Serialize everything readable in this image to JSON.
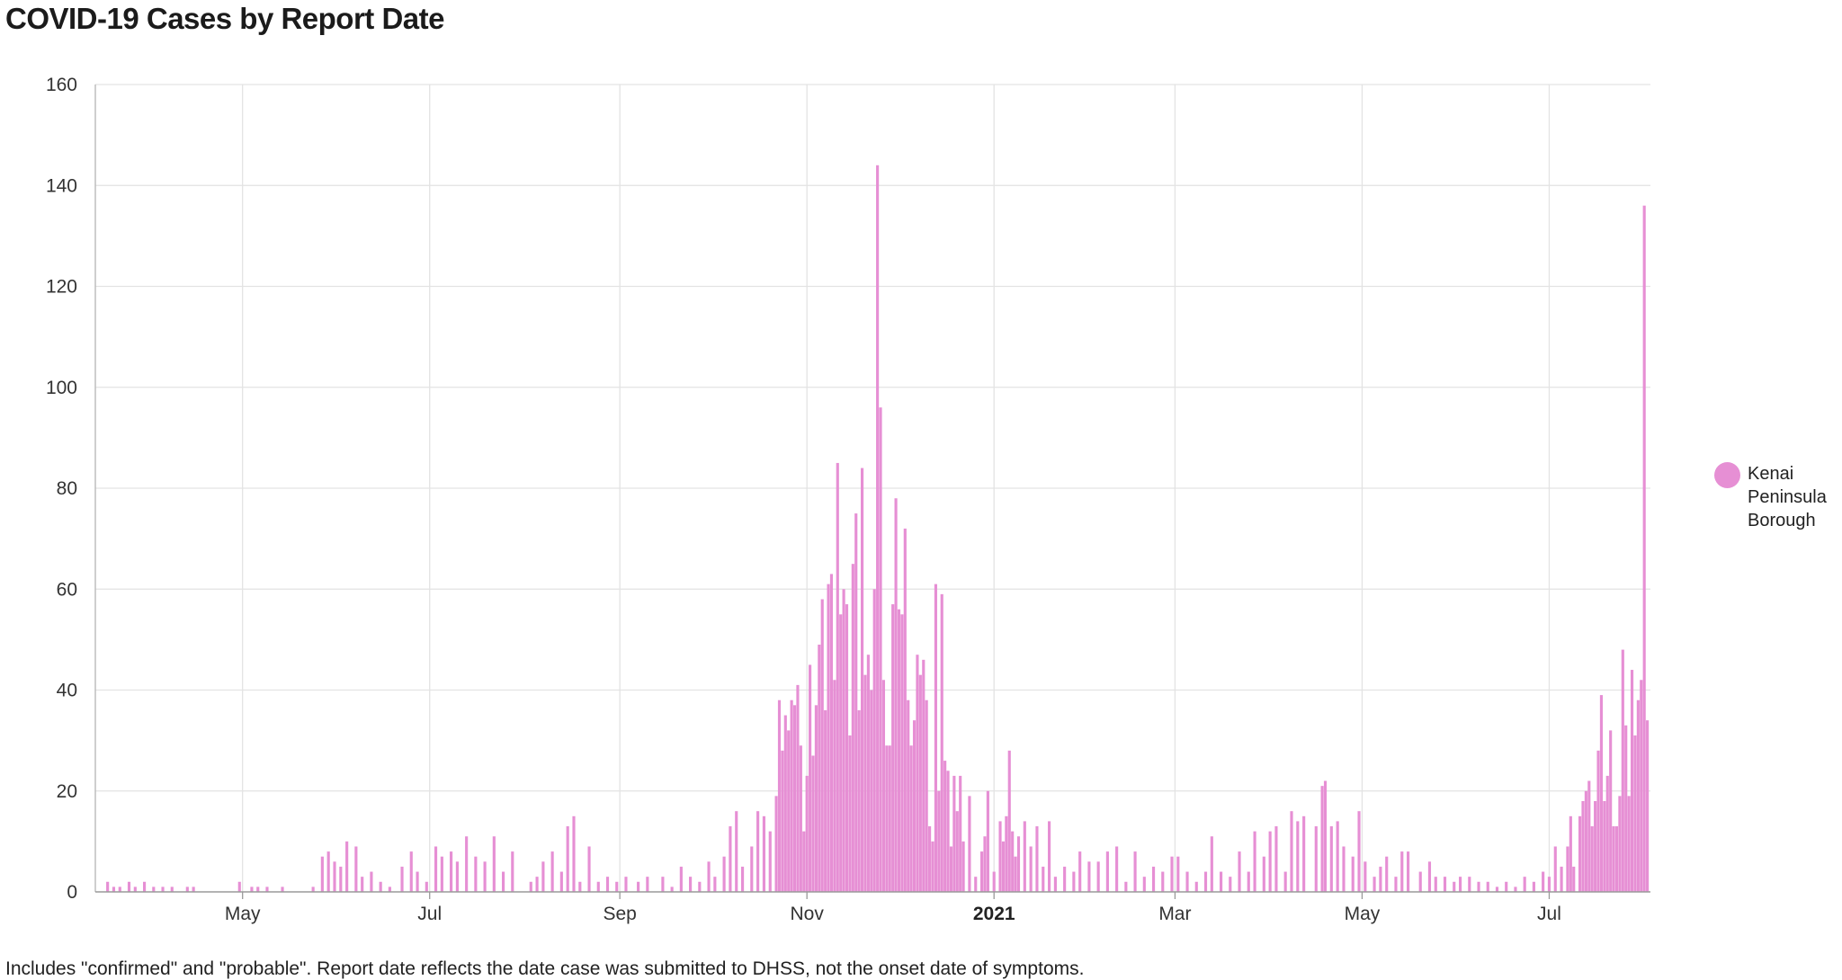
{
  "chart_data": {
    "type": "bar",
    "title": "COVID-19 Cases by Report Date",
    "footnote": "Includes \"confirmed\" and \"probable\". Report date reflects the date case was submitted to DHSS, not the onset date of symptoms.",
    "series": [
      {
        "name": "Kenai Peninsula Borough",
        "color": "#e68fd4",
        "points": [
          [
            "2020-03-18",
            2
          ],
          [
            "2020-03-20",
            1
          ],
          [
            "2020-03-22",
            1
          ],
          [
            "2020-03-25",
            2
          ],
          [
            "2020-03-27",
            1
          ],
          [
            "2020-03-30",
            2
          ],
          [
            "2020-04-02",
            1
          ],
          [
            "2020-04-05",
            1
          ],
          [
            "2020-04-08",
            1
          ],
          [
            "2020-04-13",
            1
          ],
          [
            "2020-04-15",
            1
          ],
          [
            "2020-04-30",
            2
          ],
          [
            "2020-05-04",
            1
          ],
          [
            "2020-05-06",
            1
          ],
          [
            "2020-05-09",
            1
          ],
          [
            "2020-05-14",
            1
          ],
          [
            "2020-05-24",
            1
          ],
          [
            "2020-05-27",
            7
          ],
          [
            "2020-05-29",
            8
          ],
          [
            "2020-05-31",
            6
          ],
          [
            "2020-06-02",
            5
          ],
          [
            "2020-06-04",
            10
          ],
          [
            "2020-06-07",
            9
          ],
          [
            "2020-06-09",
            3
          ],
          [
            "2020-06-12",
            4
          ],
          [
            "2020-06-15",
            2
          ],
          [
            "2020-06-18",
            1
          ],
          [
            "2020-06-22",
            5
          ],
          [
            "2020-06-25",
            8
          ],
          [
            "2020-06-27",
            4
          ],
          [
            "2020-06-30",
            2
          ],
          [
            "2020-07-03",
            9
          ],
          [
            "2020-07-05",
            7
          ],
          [
            "2020-07-08",
            8
          ],
          [
            "2020-07-10",
            6
          ],
          [
            "2020-07-13",
            11
          ],
          [
            "2020-07-16",
            7
          ],
          [
            "2020-07-19",
            6
          ],
          [
            "2020-07-22",
            11
          ],
          [
            "2020-07-25",
            4
          ],
          [
            "2020-07-28",
            8
          ],
          [
            "2020-08-03",
            2
          ],
          [
            "2020-08-05",
            3
          ],
          [
            "2020-08-07",
            6
          ],
          [
            "2020-08-10",
            8
          ],
          [
            "2020-08-13",
            4
          ],
          [
            "2020-08-15",
            13
          ],
          [
            "2020-08-17",
            15
          ],
          [
            "2020-08-19",
            2
          ],
          [
            "2020-08-22",
            9
          ],
          [
            "2020-08-25",
            2
          ],
          [
            "2020-08-28",
            3
          ],
          [
            "2020-08-31",
            2
          ],
          [
            "2020-09-03",
            3
          ],
          [
            "2020-09-07",
            2
          ],
          [
            "2020-09-10",
            3
          ],
          [
            "2020-09-15",
            3
          ],
          [
            "2020-09-18",
            1
          ],
          [
            "2020-09-21",
            5
          ],
          [
            "2020-09-24",
            3
          ],
          [
            "2020-09-27",
            2
          ],
          [
            "2020-09-30",
            6
          ],
          [
            "2020-10-02",
            3
          ],
          [
            "2020-10-05",
            7
          ],
          [
            "2020-10-07",
            13
          ],
          [
            "2020-10-09",
            16
          ],
          [
            "2020-10-11",
            5
          ],
          [
            "2020-10-14",
            9
          ],
          [
            "2020-10-16",
            16
          ],
          [
            "2020-10-18",
            15
          ],
          [
            "2020-10-20",
            12
          ],
          [
            "2020-10-22",
            19
          ],
          [
            "2020-10-23",
            38
          ],
          [
            "2020-10-24",
            28
          ],
          [
            "2020-10-25",
            35
          ],
          [
            "2020-10-26",
            32
          ],
          [
            "2020-10-27",
            38
          ],
          [
            "2020-10-28",
            37
          ],
          [
            "2020-10-29",
            41
          ],
          [
            "2020-10-30",
            29
          ],
          [
            "2020-10-31",
            12
          ],
          [
            "2020-11-01",
            23
          ],
          [
            "2020-11-02",
            45
          ],
          [
            "2020-11-03",
            27
          ],
          [
            "2020-11-04",
            37
          ],
          [
            "2020-11-05",
            49
          ],
          [
            "2020-11-06",
            58
          ],
          [
            "2020-11-07",
            36
          ],
          [
            "2020-11-08",
            61
          ],
          [
            "2020-11-09",
            63
          ],
          [
            "2020-11-10",
            42
          ],
          [
            "2020-11-11",
            85
          ],
          [
            "2020-11-12",
            55
          ],
          [
            "2020-11-13",
            60
          ],
          [
            "2020-11-14",
            57
          ],
          [
            "2020-11-15",
            31
          ],
          [
            "2020-11-16",
            65
          ],
          [
            "2020-11-17",
            75
          ],
          [
            "2020-11-18",
            36
          ],
          [
            "2020-11-19",
            84
          ],
          [
            "2020-11-20",
            43
          ],
          [
            "2020-11-21",
            47
          ],
          [
            "2020-11-22",
            40
          ],
          [
            "2020-11-23",
            60
          ],
          [
            "2020-11-24",
            144
          ],
          [
            "2020-11-25",
            96
          ],
          [
            "2020-11-26",
            42
          ],
          [
            "2020-11-27",
            29
          ],
          [
            "2020-11-28",
            29
          ],
          [
            "2020-11-29",
            57
          ],
          [
            "2020-11-30",
            78
          ],
          [
            "2020-12-01",
            56
          ],
          [
            "2020-12-02",
            55
          ],
          [
            "2020-12-03",
            72
          ],
          [
            "2020-12-04",
            38
          ],
          [
            "2020-12-05",
            29
          ],
          [
            "2020-12-06",
            34
          ],
          [
            "2020-12-07",
            47
          ],
          [
            "2020-12-08",
            43
          ],
          [
            "2020-12-09",
            46
          ],
          [
            "2020-12-10",
            38
          ],
          [
            "2020-12-11",
            13
          ],
          [
            "2020-12-12",
            10
          ],
          [
            "2020-12-13",
            61
          ],
          [
            "2020-12-14",
            20
          ],
          [
            "2020-12-15",
            59
          ],
          [
            "2020-12-16",
            26
          ],
          [
            "2020-12-17",
            24
          ],
          [
            "2020-12-18",
            9
          ],
          [
            "2020-12-19",
            23
          ],
          [
            "2020-12-20",
            16
          ],
          [
            "2020-12-21",
            23
          ],
          [
            "2020-12-22",
            10
          ],
          [
            "2020-12-24",
            19
          ],
          [
            "2020-12-26",
            3
          ],
          [
            "2020-12-28",
            8
          ],
          [
            "2020-12-29",
            11
          ],
          [
            "2020-12-30",
            20
          ],
          [
            "2021-01-01",
            4
          ],
          [
            "2021-01-03",
            14
          ],
          [
            "2021-01-04",
            10
          ],
          [
            "2021-01-05",
            15
          ],
          [
            "2021-01-06",
            28
          ],
          [
            "2021-01-07",
            12
          ],
          [
            "2021-01-08",
            7
          ],
          [
            "2021-01-09",
            11
          ],
          [
            "2021-01-11",
            14
          ],
          [
            "2021-01-13",
            9
          ],
          [
            "2021-01-15",
            13
          ],
          [
            "2021-01-17",
            5
          ],
          [
            "2021-01-19",
            14
          ],
          [
            "2021-01-21",
            3
          ],
          [
            "2021-01-24",
            5
          ],
          [
            "2021-01-27",
            4
          ],
          [
            "2021-01-29",
            8
          ],
          [
            "2021-02-01",
            6
          ],
          [
            "2021-02-04",
            6
          ],
          [
            "2021-02-07",
            8
          ],
          [
            "2021-02-10",
            9
          ],
          [
            "2021-02-13",
            2
          ],
          [
            "2021-02-16",
            8
          ],
          [
            "2021-02-19",
            3
          ],
          [
            "2021-02-22",
            5
          ],
          [
            "2021-02-25",
            4
          ],
          [
            "2021-02-28",
            7
          ],
          [
            "2021-03-02",
            7
          ],
          [
            "2021-03-05",
            4
          ],
          [
            "2021-03-08",
            2
          ],
          [
            "2021-03-11",
            4
          ],
          [
            "2021-03-13",
            11
          ],
          [
            "2021-03-16",
            4
          ],
          [
            "2021-03-19",
            3
          ],
          [
            "2021-03-22",
            8
          ],
          [
            "2021-03-25",
            4
          ],
          [
            "2021-03-27",
            12
          ],
          [
            "2021-03-30",
            7
          ],
          [
            "2021-04-01",
            12
          ],
          [
            "2021-04-03",
            13
          ],
          [
            "2021-04-06",
            4
          ],
          [
            "2021-04-08",
            16
          ],
          [
            "2021-04-10",
            14
          ],
          [
            "2021-04-12",
            15
          ],
          [
            "2021-04-16",
            13
          ],
          [
            "2021-04-18",
            21
          ],
          [
            "2021-04-19",
            22
          ],
          [
            "2021-04-21",
            13
          ],
          [
            "2021-04-23",
            14
          ],
          [
            "2021-04-25",
            9
          ],
          [
            "2021-04-28",
            7
          ],
          [
            "2021-04-30",
            16
          ],
          [
            "2021-05-02",
            6
          ],
          [
            "2021-05-05",
            3
          ],
          [
            "2021-05-07",
            5
          ],
          [
            "2021-05-09",
            7
          ],
          [
            "2021-05-12",
            3
          ],
          [
            "2021-05-14",
            8
          ],
          [
            "2021-05-16",
            8
          ],
          [
            "2021-05-20",
            4
          ],
          [
            "2021-05-23",
            6
          ],
          [
            "2021-05-25",
            3
          ],
          [
            "2021-05-28",
            3
          ],
          [
            "2021-05-31",
            2
          ],
          [
            "2021-06-02",
            3
          ],
          [
            "2021-06-05",
            3
          ],
          [
            "2021-06-08",
            2
          ],
          [
            "2021-06-11",
            2
          ],
          [
            "2021-06-14",
            1
          ],
          [
            "2021-06-17",
            2
          ],
          [
            "2021-06-20",
            1
          ],
          [
            "2021-06-23",
            3
          ],
          [
            "2021-06-26",
            2
          ],
          [
            "2021-06-29",
            4
          ],
          [
            "2021-07-01",
            3
          ],
          [
            "2021-07-03",
            9
          ],
          [
            "2021-07-05",
            5
          ],
          [
            "2021-07-07",
            9
          ],
          [
            "2021-07-08",
            15
          ],
          [
            "2021-07-09",
            5
          ],
          [
            "2021-07-11",
            15
          ],
          [
            "2021-07-12",
            18
          ],
          [
            "2021-07-13",
            20
          ],
          [
            "2021-07-14",
            22
          ],
          [
            "2021-07-15",
            13
          ],
          [
            "2021-07-16",
            18
          ],
          [
            "2021-07-17",
            28
          ],
          [
            "2021-07-18",
            39
          ],
          [
            "2021-07-19",
            18
          ],
          [
            "2021-07-20",
            23
          ],
          [
            "2021-07-21",
            32
          ],
          [
            "2021-07-22",
            13
          ],
          [
            "2021-07-23",
            13
          ],
          [
            "2021-07-24",
            19
          ],
          [
            "2021-07-25",
            48
          ],
          [
            "2021-07-26",
            33
          ],
          [
            "2021-07-27",
            19
          ],
          [
            "2021-07-28",
            44
          ],
          [
            "2021-07-29",
            31
          ],
          [
            "2021-07-30",
            38
          ],
          [
            "2021-07-31",
            42
          ],
          [
            "2021-08-01",
            136
          ],
          [
            "2021-08-02",
            34
          ]
        ]
      }
    ],
    "xlabel": "",
    "ylabel": "",
    "x_tick_labels": [
      {
        "date": "2020-05-01",
        "label": "May",
        "bold": false
      },
      {
        "date": "2020-07-01",
        "label": "Jul",
        "bold": false
      },
      {
        "date": "2020-09-01",
        "label": "Sep",
        "bold": false
      },
      {
        "date": "2020-11-01",
        "label": "Nov",
        "bold": false
      },
      {
        "date": "2021-01-01",
        "label": "2021",
        "bold": true
      },
      {
        "date": "2021-03-01",
        "label": "Mar",
        "bold": false
      },
      {
        "date": "2021-05-01",
        "label": "May",
        "bold": false
      },
      {
        "date": "2021-07-01",
        "label": "Jul",
        "bold": false
      }
    ],
    "xlim": [
      "2020-03-14",
      "2021-08-03"
    ],
    "ylim": [
      0,
      160
    ],
    "y_ticks": [
      0,
      20,
      40,
      60,
      80,
      100,
      120,
      140,
      160
    ],
    "grid": true,
    "legend_position": "right"
  }
}
